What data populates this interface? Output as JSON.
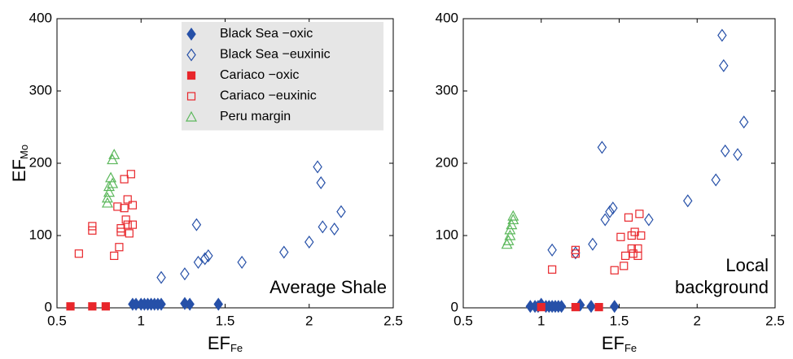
{
  "chart_data": [
    {
      "type": "scatter",
      "ylabel": "EF",
      "ylabel_subscript": "Mo",
      "xlabel": "EF",
      "xlabel_subscript": "Fe",
      "xlim": [
        0.5,
        2.5
      ],
      "xticks": [
        0.5,
        1,
        1.5,
        2,
        2.5
      ],
      "ylim": [
        0,
        400
      ],
      "yticks": [
        0,
        100,
        200,
        300,
        400
      ],
      "legend": "upper right",
      "annotation": [
        "Average Shale"
      ],
      "series": [
        {
          "name": "Black Sea −oxic",
          "color": "#2650a8",
          "marker": "diamond-filled",
          "x": [
            0.95,
            0.97,
            1.0,
            1.02,
            1.04,
            1.06,
            1.08,
            1.1,
            1.12,
            1.26,
            1.29,
            1.46
          ],
          "values": [
            5,
            5,
            5,
            5,
            5,
            5,
            5,
            5,
            5,
            6,
            5,
            5
          ]
        },
        {
          "name": "Black Sea −euxinic",
          "color": "#2650a8",
          "marker": "diamond-open",
          "x": [
            1.12,
            1.26,
            1.33,
            1.34,
            1.38,
            1.4,
            1.6,
            1.85,
            2.0,
            2.05,
            2.07,
            2.08,
            2.15,
            2.19
          ],
          "values": [
            42,
            47,
            115,
            63,
            68,
            72,
            63,
            77,
            91,
            195,
            173,
            112,
            109,
            133
          ]
        },
        {
          "name": "Cariaco −oxic",
          "color": "#e8262b",
          "marker": "square-filled",
          "x": [
            0.58,
            0.71,
            0.79
          ],
          "values": [
            2,
            2,
            2
          ]
        },
        {
          "name": "Cariaco −euxinic",
          "color": "#e8262b",
          "marker": "square-open",
          "x": [
            0.63,
            0.71,
            0.71,
            0.84,
            0.86,
            0.87,
            0.88,
            0.88,
            0.9,
            0.9,
            0.91,
            0.92,
            0.92,
            0.93,
            0.94,
            0.95,
            0.95
          ],
          "values": [
            75,
            113,
            107,
            72,
            140,
            84,
            110,
            105,
            178,
            138,
            122,
            150,
            115,
            103,
            185,
            115,
            142
          ]
        },
        {
          "name": "Peru margin",
          "color": "#5cb85c",
          "marker": "triangle-open",
          "x": [
            0.8,
            0.8,
            0.81,
            0.81,
            0.82,
            0.83,
            0.83,
            0.84
          ],
          "values": [
            145,
            152,
            160,
            168,
            180,
            172,
            205,
            212
          ]
        }
      ]
    },
    {
      "type": "scatter",
      "xlabel": "EF",
      "xlabel_subscript": "Fe",
      "xlim": [
        0.5,
        2.5
      ],
      "xticks": [
        0.5,
        1,
        1.5,
        2,
        2.5
      ],
      "ylim": [
        0,
        400
      ],
      "yticks": [
        0,
        100,
        200,
        300,
        400
      ],
      "legend": false,
      "annotation": [
        "Local",
        "background"
      ],
      "series": [
        {
          "color": "#2650a8",
          "marker": "diamond-filled",
          "x": [
            0.93,
            0.96,
            0.98,
            1.0,
            1.03,
            1.05,
            1.07,
            1.09,
            1.11,
            1.13,
            1.25,
            1.32,
            1.47
          ],
          "values": [
            2,
            2,
            2,
            5,
            2,
            2,
            2,
            2,
            2,
            2,
            4,
            2,
            2
          ]
        },
        {
          "color": "#2650a8",
          "marker": "diamond-open",
          "x": [
            1.07,
            1.22,
            1.33,
            1.39,
            1.41,
            1.44,
            1.46,
            1.69,
            1.94,
            2.12,
            2.16,
            2.17,
            2.18,
            2.26,
            2.3
          ],
          "values": [
            80,
            76,
            88,
            222,
            122,
            133,
            138,
            122,
            148,
            177,
            377,
            335,
            217,
            212,
            257
          ]
        },
        {
          "color": "#e8262b",
          "marker": "square-filled",
          "x": [
            1.0,
            1.22,
            1.37
          ],
          "values": [
            1,
            1,
            1
          ]
        },
        {
          "color": "#e8262b",
          "marker": "square-open",
          "x": [
            1.07,
            1.22,
            1.22,
            1.47,
            1.51,
            1.53,
            1.54,
            1.56,
            1.58,
            1.58,
            1.59,
            1.6,
            1.62,
            1.62,
            1.63,
            1.64
          ],
          "values": [
            53,
            75,
            80,
            52,
            98,
            58,
            72,
            125,
            82,
            100,
            75,
            105,
            82,
            72,
            130,
            100
          ]
        },
        {
          "color": "#5cb85c",
          "marker": "triangle-open",
          "x": [
            0.78,
            0.79,
            0.8,
            0.8,
            0.81,
            0.82,
            0.82
          ],
          "values": [
            88,
            93,
            100,
            108,
            115,
            122,
            127
          ]
        }
      ]
    }
  ]
}
